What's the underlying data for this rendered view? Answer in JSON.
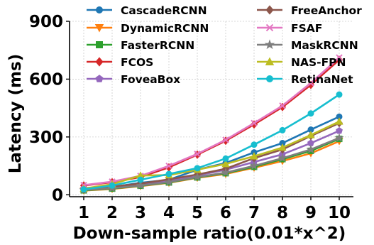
{
  "chart_data": {
    "type": "line",
    "title": "",
    "xlabel": "Down-sample ratio(0.01*x^2)",
    "ylabel": "Latency (ms)",
    "x": [
      1,
      2,
      3,
      4,
      5,
      6,
      7,
      8,
      9,
      10
    ],
    "xlim": [
      0.5,
      10.5
    ],
    "ylim": [
      -10,
      900
    ],
    "yticks": [
      0,
      300,
      600,
      900
    ],
    "grid": true,
    "legend": "top, two columns",
    "series": [
      {
        "name": "CascadeRCNN",
        "color": "#1f77b4",
        "marker": "circle",
        "values": [
          35,
          40,
          62,
          78,
          130,
          165,
          220,
          268,
          338,
          405
        ]
      },
      {
        "name": "DynamicRCNN",
        "color": "#ff7f0e",
        "marker": "triangle-down",
        "values": [
          22,
          30,
          45,
          62,
          88,
          108,
          140,
          175,
          215,
          278
        ]
      },
      {
        "name": "FasterRCNN",
        "color": "#2ca02c",
        "marker": "square",
        "values": [
          23,
          32,
          47,
          64,
          90,
          112,
          145,
          185,
          228,
          290
        ]
      },
      {
        "name": "FCOS",
        "color": "#d62728",
        "marker": "diamond",
        "values": [
          48,
          65,
          92,
          142,
          208,
          280,
          365,
          455,
          570,
          700
        ]
      },
      {
        "name": "FoveaBox",
        "color": "#9467bd",
        "marker": "pentagon",
        "values": [
          30,
          38,
          52,
          72,
          100,
          130,
          170,
          210,
          268,
          332
        ]
      },
      {
        "name": "FreeAnchor",
        "color": "#8c564b",
        "marker": "diamond",
        "values": [
          28,
          42,
          58,
          80,
          105,
          135,
          190,
          235,
          305,
          372
        ]
      },
      {
        "name": "FSAF",
        "color": "#e377c2",
        "marker": "x",
        "values": [
          50,
          68,
          98,
          150,
          212,
          285,
          372,
          462,
          580,
          712
        ]
      },
      {
        "name": "MaskRCNN",
        "color": "#7f7f7f",
        "marker": "star",
        "values": [
          25,
          34,
          48,
          66,
          92,
          115,
          150,
          190,
          235,
          295
        ]
      },
      {
        "name": "NAS-FPN",
        "color": "#bcbd22",
        "marker": "triangle-up",
        "values": [
          32,
          55,
          100,
          102,
          130,
          160,
          200,
          245,
          310,
          380
        ]
      },
      {
        "name": "RetinaNet",
        "color": "#17becf",
        "marker": "circle",
        "values": [
          28,
          48,
          78,
          108,
          138,
          188,
          260,
          335,
          422,
          520
        ]
      }
    ]
  }
}
